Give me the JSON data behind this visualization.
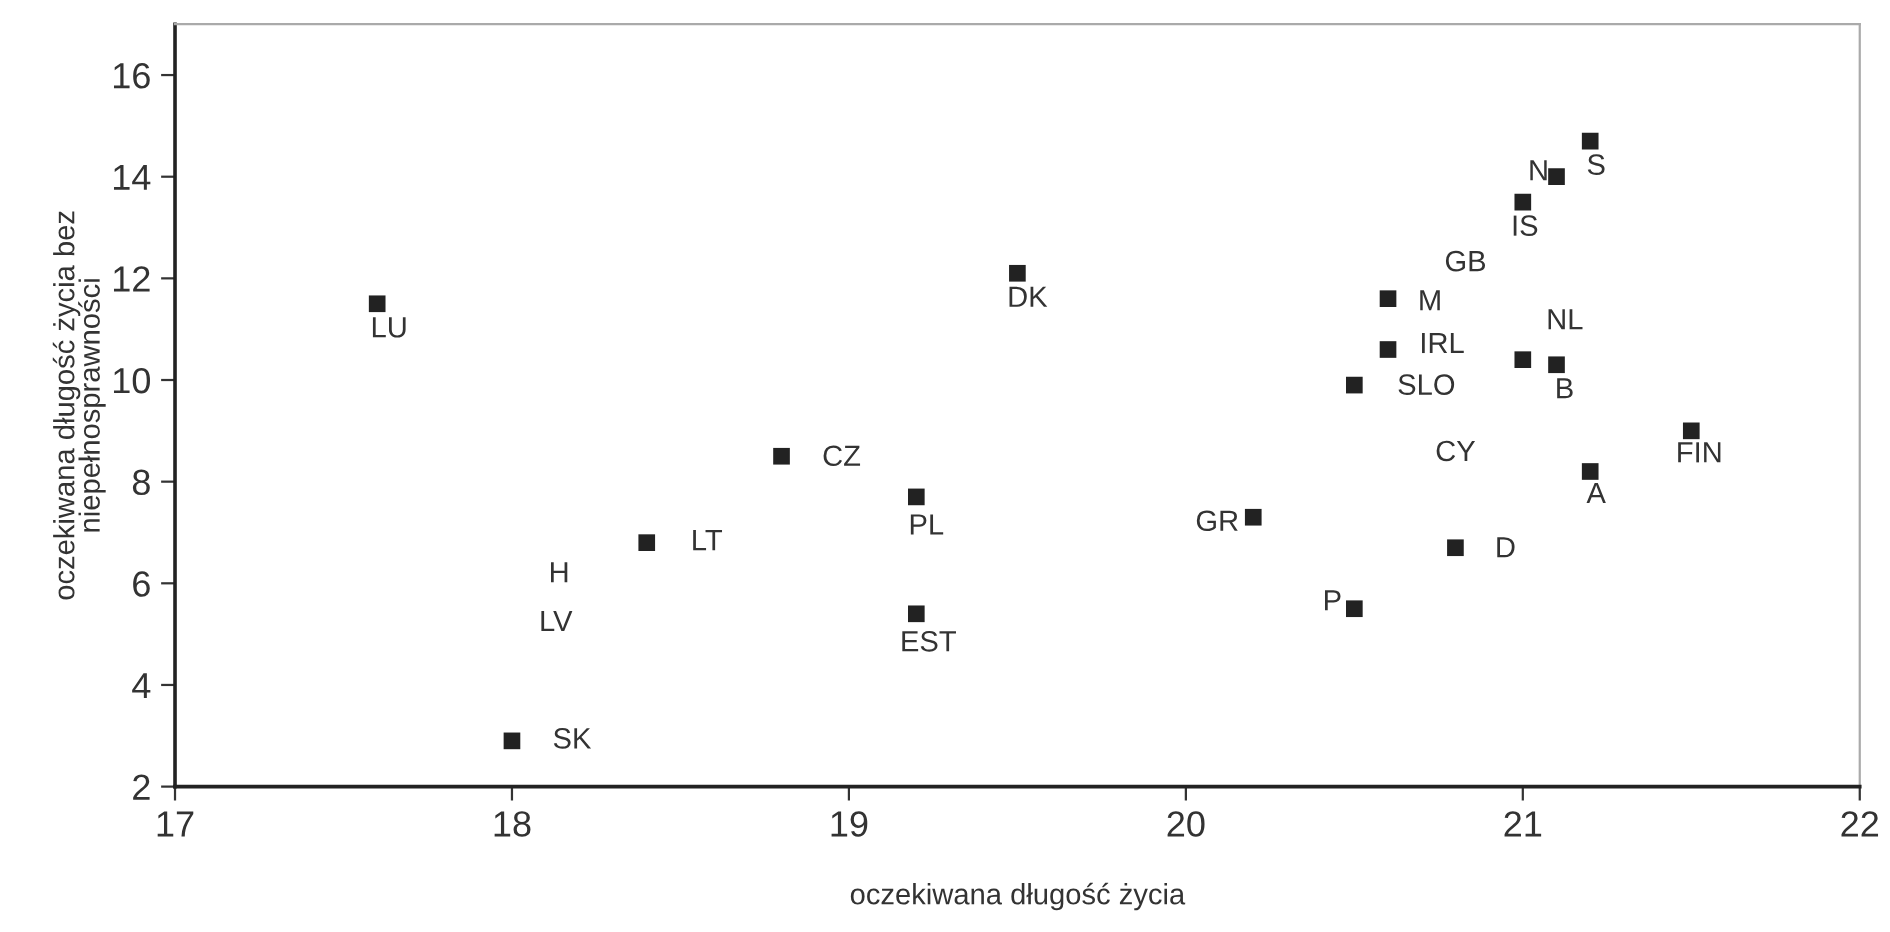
{
  "chart_data": {
    "type": "scatter",
    "xlabel": "oczekiwana długość życia",
    "ylabel": "oczekiwana długość życia bez\nniepełnosprawności",
    "xlim": [
      17,
      22
    ],
    "ylim": [
      2,
      17
    ],
    "xticks": [
      17,
      18,
      19,
      20,
      21,
      22
    ],
    "yticks": [
      2,
      4,
      6,
      8,
      10,
      12,
      14,
      16
    ],
    "grid": false,
    "legend": false,
    "marker": "square",
    "series": [
      {
        "color": "#222222",
        "x": [
          17.6,
          18.0,
          18.4,
          18.8,
          19.2,
          19.2,
          19.5,
          20.2,
          20.5,
          20.5,
          20.6,
          20.6,
          20.8,
          21.0,
          21.1,
          21.2,
          21.0,
          21.1,
          21.2,
          21.5
        ],
        "values": [
          11.5,
          2.9,
          6.8,
          8.5,
          7.7,
          5.4,
          12.1,
          7.3,
          5.5,
          9.9,
          11.6,
          10.6,
          6.7,
          13.5,
          14.0,
          14.7,
          10.4,
          10.3,
          8.2,
          9.0
        ]
      }
    ],
    "annotations": [
      {
        "text": "LU",
        "x": 17.6,
        "y": 11.5
      },
      {
        "text": "SK",
        "x": 18.0,
        "y": 2.9
      },
      {
        "text": "LT",
        "x": 18.4,
        "y": 6.8
      },
      {
        "text": "CZ",
        "x": 18.8,
        "y": 8.5
      },
      {
        "text": "PL",
        "x": 19.2,
        "y": 7.7
      },
      {
        "text": "EST",
        "x": 19.2,
        "y": 5.4
      },
      {
        "text": "DK",
        "x": 19.5,
        "y": 12.1
      },
      {
        "text": "GR",
        "x": 20.2,
        "y": 7.3
      },
      {
        "text": "P",
        "x": 20.5,
        "y": 5.5
      },
      {
        "text": "SLO",
        "x": 20.5,
        "y": 9.9
      },
      {
        "text": "M",
        "x": 20.6,
        "y": 11.6
      },
      {
        "text": "IRL",
        "x": 20.6,
        "y": 10.6
      },
      {
        "text": "D",
        "x": 20.8,
        "y": 6.7
      },
      {
        "text": "IS",
        "x": 21.0,
        "y": 13.5
      },
      {
        "text": "N",
        "x": 21.1,
        "y": 14.0
      },
      {
        "text": "S",
        "x": 21.2,
        "y": 14.7
      },
      {
        "text": "NL",
        "x": 21.0,
        "y": 10.4
      },
      {
        "text": "B",
        "x": 21.1,
        "y": 10.3
      },
      {
        "text": "A",
        "x": 21.2,
        "y": 8.2
      },
      {
        "text": "FIN",
        "x": 21.5,
        "y": 9.0
      },
      "H",
      "LV",
      "GB",
      "CY"
    ]
  }
}
